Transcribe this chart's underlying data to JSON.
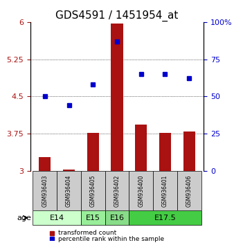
{
  "title": "GDS4591 / 1451954_at",
  "samples": [
    "GSM936403",
    "GSM936404",
    "GSM936405",
    "GSM936402",
    "GSM936400",
    "GSM936401",
    "GSM936406"
  ],
  "transformed_count": [
    3.27,
    3.03,
    3.77,
    5.97,
    3.93,
    3.77,
    3.79
  ],
  "percentile_rank": [
    50,
    44,
    58,
    87,
    65,
    65,
    62
  ],
  "left_ylim": [
    3.0,
    6.0
  ],
  "right_ylim": [
    0,
    100
  ],
  "left_yticks": [
    3.0,
    3.75,
    4.5,
    5.25,
    6.0
  ],
  "right_yticks": [
    0,
    25,
    50,
    75,
    100
  ],
  "left_ytick_labels": [
    "3",
    "3.75",
    "4.5",
    "5.25",
    "6"
  ],
  "right_ytick_labels": [
    "0",
    "25",
    "50",
    "75",
    "100%"
  ],
  "bar_color": "#aa1111",
  "dot_color": "#0000cc",
  "bar_bottom": 3.0,
  "age_groups": [
    {
      "label": "E14",
      "samples": [
        0,
        1
      ],
      "color": "#ccffcc"
    },
    {
      "label": "E15",
      "samples": [
        2
      ],
      "color": "#99ee99"
    },
    {
      "label": "E16",
      "samples": [
        3
      ],
      "color": "#88dd88"
    },
    {
      "label": "E17.5",
      "samples": [
        4,
        5,
        6
      ],
      "color": "#44cc44"
    }
  ],
  "sample_box_color": "#cccccc",
  "legend_bar_label": "transformed count",
  "legend_dot_label": "percentile rank within the sample",
  "age_label": "age",
  "title_fontsize": 11,
  "tick_fontsize": 8,
  "label_fontsize": 8
}
